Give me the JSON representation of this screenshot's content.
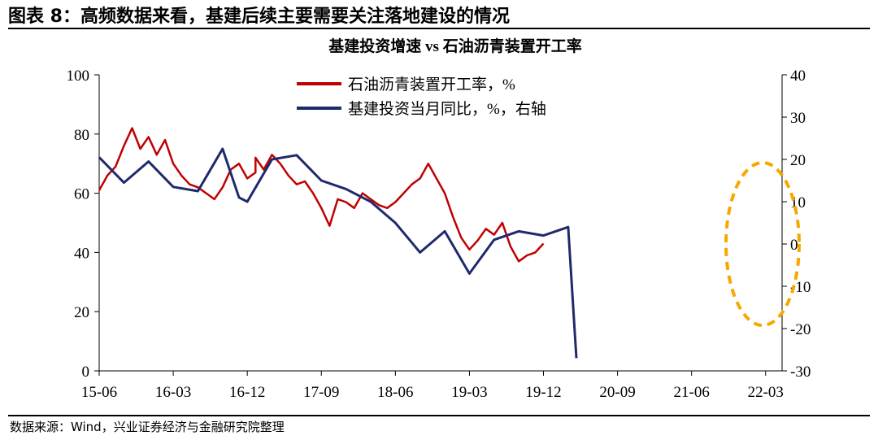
{
  "figure": {
    "title": "图表 8：高频数据来看，基建后续主要需要关注落地建设的情况",
    "source": "数据来源：Wind，兴业证券经济与金融研究院整理"
  },
  "colors": {
    "left_series": "#c00000",
    "right_series": "#1f2a6b",
    "highlight": "#f5a800",
    "axis": "#000000"
  },
  "chart_data": {
    "type": "line",
    "title": "基建投资增速 vs 石油沥青装置开工率",
    "grid": false,
    "legend_position": "top-center",
    "x_tick_labels": [
      "15-06",
      "16-03",
      "16-12",
      "17-09",
      "18-06",
      "19-03",
      "19-12",
      "20-09",
      "21-06",
      "22-03"
    ],
    "x_range": [
      "2015-06",
      "2022-05"
    ],
    "y_left": {
      "ticks": [
        0,
        20,
        40,
        60,
        80,
        100
      ],
      "range": [
        0,
        100
      ]
    },
    "y_right": {
      "ticks": [
        -30,
        -20,
        -10,
        0,
        10,
        20,
        30,
        40
      ],
      "range": [
        -30,
        40
      ]
    },
    "annotation": "dashed orange ellipse highlighting 2022 data",
    "series": [
      {
        "name": "石油沥青装置开工率，%",
        "axis": "left",
        "color": "#c00000",
        "frequency": "weekly",
        "points": [
          [
            "2015-06",
            61
          ],
          [
            "2015-07",
            66
          ],
          [
            "2015-08",
            69
          ],
          [
            "2015-09",
            76
          ],
          [
            "2015-10",
            82
          ],
          [
            "2015-11",
            75
          ],
          [
            "2015-12",
            79
          ],
          [
            "2016-01",
            73
          ],
          [
            "2016-02",
            78
          ],
          [
            "2016-03",
            70
          ],
          [
            "2016-04",
            66
          ],
          [
            "2016-05",
            63
          ],
          [
            "2016-06",
            62
          ],
          [
            "2016-07",
            60
          ],
          [
            "2016-08",
            58
          ],
          [
            "2016-09",
            62
          ],
          [
            "2016-10",
            68
          ],
          [
            "2016-11",
            70
          ],
          [
            "2016-12",
            65
          ],
          [
            "2016-13",
            67
          ],
          [
            "2017-01",
            72
          ],
          [
            "2017-02",
            68
          ],
          [
            "2017-03",
            73
          ],
          [
            "2017-04",
            70
          ],
          [
            "2017-05",
            66
          ],
          [
            "2017-06",
            63
          ],
          [
            "2017-07",
            64
          ],
          [
            "2017-08",
            60
          ],
          [
            "2017-09",
            55
          ],
          [
            "2017-10",
            49
          ],
          [
            "2017-11",
            58
          ],
          [
            "2017-12",
            57
          ],
          [
            "2018-01",
            55
          ],
          [
            "2018-02",
            60
          ],
          [
            "2018-03",
            58
          ],
          [
            "2018-04",
            56
          ],
          [
            "2018-05",
            55
          ],
          [
            "2018-06",
            57
          ],
          [
            "2018-07",
            60
          ],
          [
            "2018-08",
            63
          ],
          [
            "2018-09",
            65
          ],
          [
            "2018-10",
            70
          ],
          [
            "2018-11",
            65
          ],
          [
            "2018-12",
            60
          ],
          [
            "2019-01",
            52
          ],
          [
            "2019-02",
            45
          ],
          [
            "2019-03",
            41
          ],
          [
            "2019-04",
            44
          ],
          [
            "2019-05",
            48
          ],
          [
            "2019-06",
            46
          ],
          [
            "2019-07",
            50
          ],
          [
            "2019-08",
            42
          ],
          [
            "2019-09",
            37
          ],
          [
            "2019-10",
            39
          ],
          [
            "2019-11",
            40
          ],
          [
            "2019-12",
            43
          ]
        ]
      },
      {
        "name": "基建投资当月同比，%，右轴",
        "axis": "right",
        "color": "#1f2a6b",
        "frequency": "monthly",
        "points": [
          [
            "2015-06",
            20.5
          ],
          [
            "2015-09",
            14.5
          ],
          [
            "2015-12",
            19.5
          ],
          [
            "2016-03",
            13.5
          ],
          [
            "2016-06",
            12.5
          ],
          [
            "2016-09",
            22.5
          ],
          [
            "2016-11",
            11
          ],
          [
            "2016-12",
            10
          ],
          [
            "2017-03",
            20
          ],
          [
            "2017-06",
            21
          ],
          [
            "2017-09",
            15
          ],
          [
            "2017-12",
            13
          ],
          [
            "2018-03",
            10
          ],
          [
            "2018-06",
            5
          ],
          [
            "2018-09",
            -2
          ],
          [
            "2018-12",
            3
          ],
          [
            "2019-03",
            -7
          ],
          [
            "2019-06",
            1
          ],
          [
            "2019-09",
            3
          ],
          [
            "2019-12",
            2
          ],
          [
            "2020-03",
            4
          ],
          [
            "2020-04",
            -27
          ]
        ]
      }
    ]
  }
}
